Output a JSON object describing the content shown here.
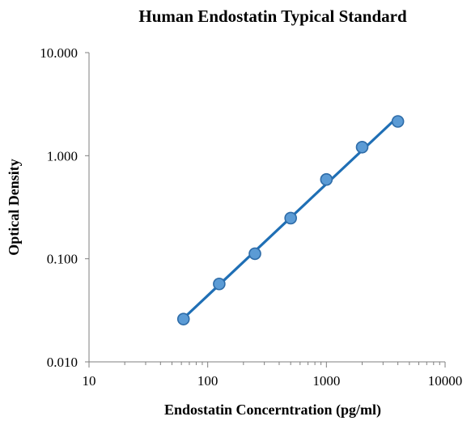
{
  "chart_data": {
    "type": "scatter",
    "title": "Human Endostatin Typical Standard",
    "xlabel": "Endostatin Concerntration (pg/ml)",
    "ylabel": "Optical Density",
    "x_scale": "log",
    "y_scale": "log",
    "xlim": [
      10,
      10000
    ],
    "ylim": [
      0.01,
      10
    ],
    "x_tick_labels": [
      "10",
      "100",
      "1000",
      "10000"
    ],
    "y_tick_labels": [
      "10.000",
      "1.000",
      "0.100",
      "0.010"
    ],
    "grid": false,
    "legend": "none",
    "trendline": "power",
    "colors": {
      "line": "#1f6fb5",
      "marker_fill": "#5b9bd5",
      "marker_edge": "#2e6ca8",
      "axis": "#7f7f7f"
    },
    "series": [
      {
        "x": [
          62.5,
          125,
          250,
          500,
          1000,
          2000,
          4000
        ],
        "y": [
          0.026,
          0.057,
          0.112,
          0.248,
          0.588,
          1.21,
          2.15
        ]
      }
    ]
  }
}
